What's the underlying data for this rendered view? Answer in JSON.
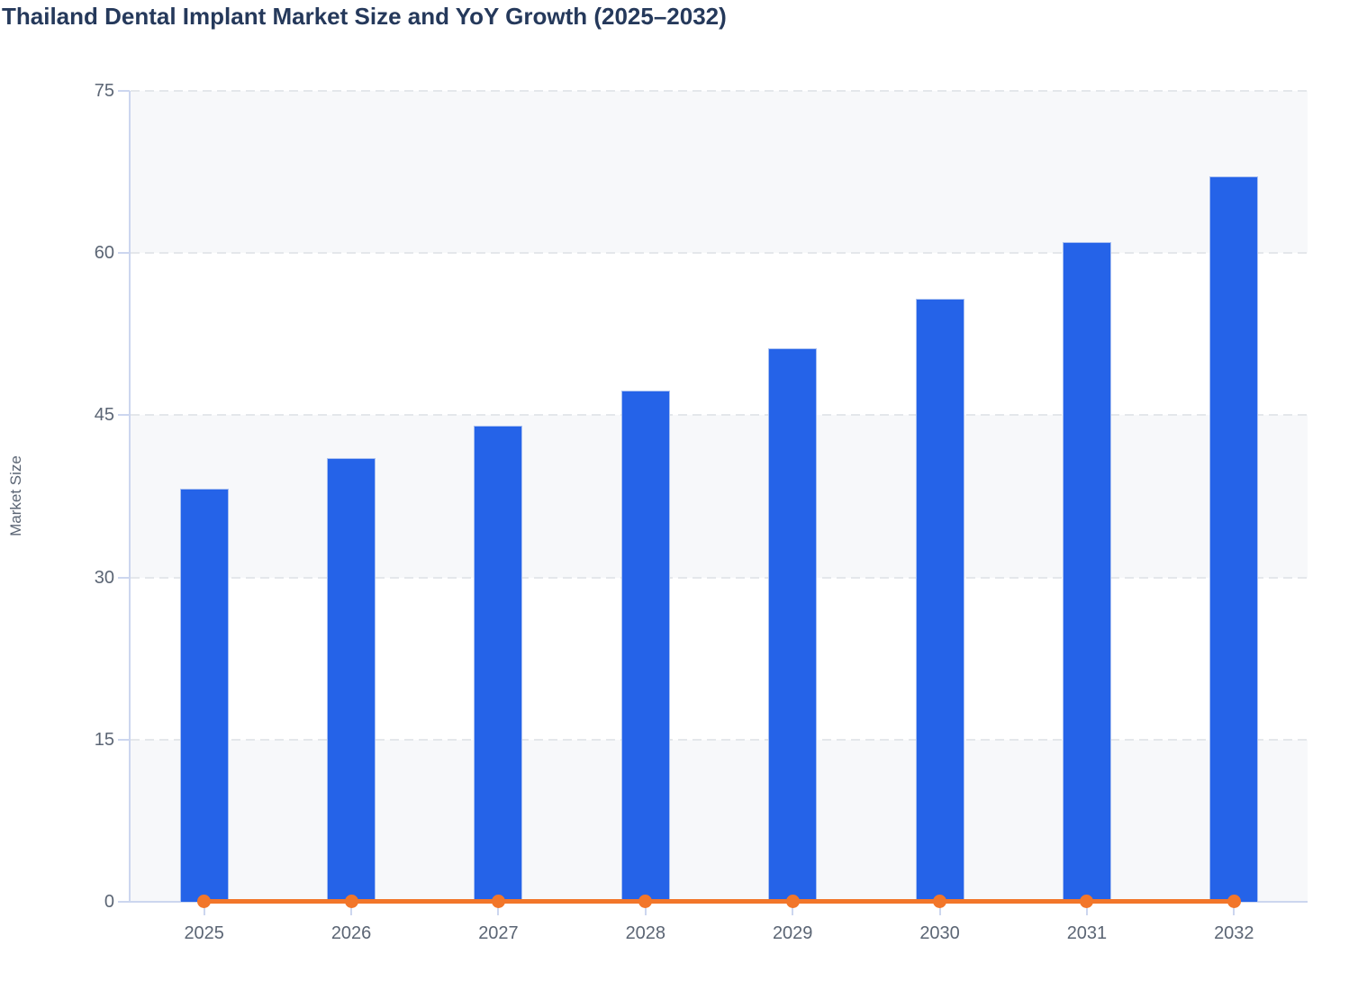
{
  "page": {
    "title": "Thailand Dental Implant Market Size and YoY Growth (2025–2032)"
  },
  "chart_data": {
    "type": "bar",
    "title": "Thailand Dental Implant Market Size and YoY Growth (2025–2032)",
    "categories": [
      "2025",
      "2026",
      "2027",
      "2028",
      "2029",
      "2030",
      "2031",
      "2032"
    ],
    "series": [
      {
        "name": "Market Size",
        "type": "bar",
        "color": "#2563e8",
        "values": [
          38.2,
          41.0,
          44.0,
          47.3,
          51.2,
          55.8,
          61.0,
          67.1
        ]
      },
      {
        "name": "YoY Growth",
        "type": "line",
        "color": "#f2762a",
        "values": [
          0,
          0,
          0,
          0,
          0,
          0,
          0,
          0
        ]
      }
    ],
    "xlabel": "",
    "ylabel": "Market Size",
    "ylim": [
      0,
      75
    ],
    "yticks": [
      0,
      15,
      30,
      45,
      60,
      75
    ],
    "grid": "horizontal-dashed",
    "plot_bands": "alternating-light",
    "legend_position": "none"
  },
  "colors": {
    "bar": "#2563e8",
    "bar_border": "#a9c0f1",
    "line": "#f2762a",
    "band": "#f7f8fa",
    "grid": "#e4e7eb",
    "axis": "#ccd6ef",
    "tick_label": "#5b6574",
    "title": "#25395b"
  }
}
